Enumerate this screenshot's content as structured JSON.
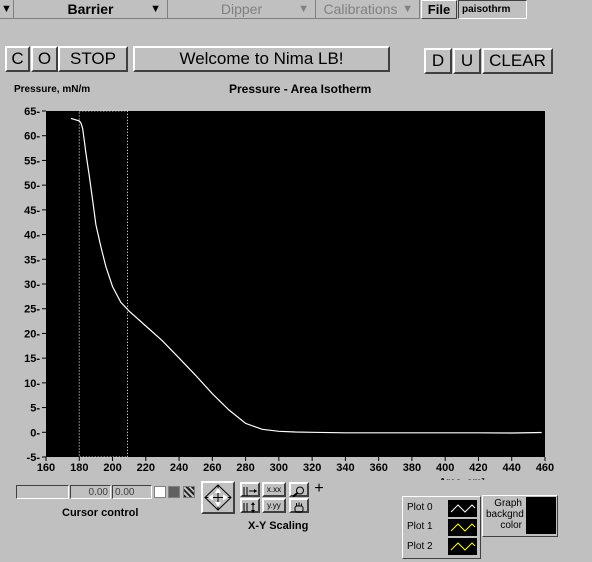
{
  "menubar": {
    "barrier": "Barrier",
    "dipper": "Dipper",
    "calibrations": "Calibrations",
    "file_button": "File",
    "file_name": "paisothrm"
  },
  "toolbar": {
    "c_label": "C",
    "o_label": "O",
    "stop_label": "STOP",
    "welcome": "Welcome to Nima LB!",
    "d_label": "D",
    "u_label": "U",
    "clear_label": "CLEAR"
  },
  "graph": {
    "title": "Pressure - Area Isotherm",
    "ylabel": "Pressure, mN/m",
    "xlabel": "Area, cm²"
  },
  "chart_data": {
    "type": "line",
    "title": "Pressure - Area Isotherm",
    "xlabel": "Area, cm²",
    "ylabel": "Pressure, mN/m",
    "xlim": [
      160,
      460
    ],
    "ylim": [
      -5,
      65
    ],
    "xticks": [
      160,
      180,
      200,
      220,
      240,
      260,
      280,
      300,
      320,
      340,
      360,
      380,
      400,
      420,
      440,
      460
    ],
    "yticks": [
      -5,
      0,
      5,
      10,
      15,
      20,
      25,
      30,
      35,
      40,
      45,
      50,
      55,
      60,
      65
    ],
    "grid": false,
    "background": "#000000",
    "line_color": "#ffffff",
    "series": [
      {
        "x": [
          175,
          180,
          181,
          182,
          183,
          184,
          186,
          188,
          190,
          193,
          196,
          200,
          205,
          210,
          220,
          230,
          240,
          250,
          260,
          270,
          280,
          290,
          300,
          310,
          320,
          340,
          360,
          380,
          400,
          420,
          440,
          458
        ],
        "y": [
          63.5,
          63.0,
          62.6,
          61.5,
          59.0,
          56.5,
          52.0,
          47.0,
          42.0,
          37.5,
          33.5,
          29.5,
          26.3,
          24.5,
          21.5,
          18.5,
          15.0,
          11.5,
          7.8,
          4.5,
          1.8,
          0.6,
          0.2,
          0.05,
          0.0,
          -0.1,
          -0.1,
          -0.1,
          -0.1,
          -0.1,
          -0.15,
          -0.05
        ]
      }
    ],
    "cursor_box": {
      "x": [
        180,
        209
      ],
      "y": [
        -5,
        65
      ]
    }
  },
  "cursor_control": {
    "label": "Cursor control",
    "field1": "0.00",
    "field2": "0.00"
  },
  "scaling": {
    "label": "X-Y Scaling",
    "x_format": "x.xx",
    "y_format": "y.yy"
  },
  "legend": {
    "plot0": "Plot 0",
    "plot1": "Plot 1",
    "plot2": "Plot 2",
    "graph_bg_line1": "Graph",
    "graph_bg_line2": "backgnd",
    "graph_bg_line3": "color",
    "plot0_color": "#ffffff",
    "plot1_color": "#ffff00",
    "plot2_color": "#ffff00"
  }
}
